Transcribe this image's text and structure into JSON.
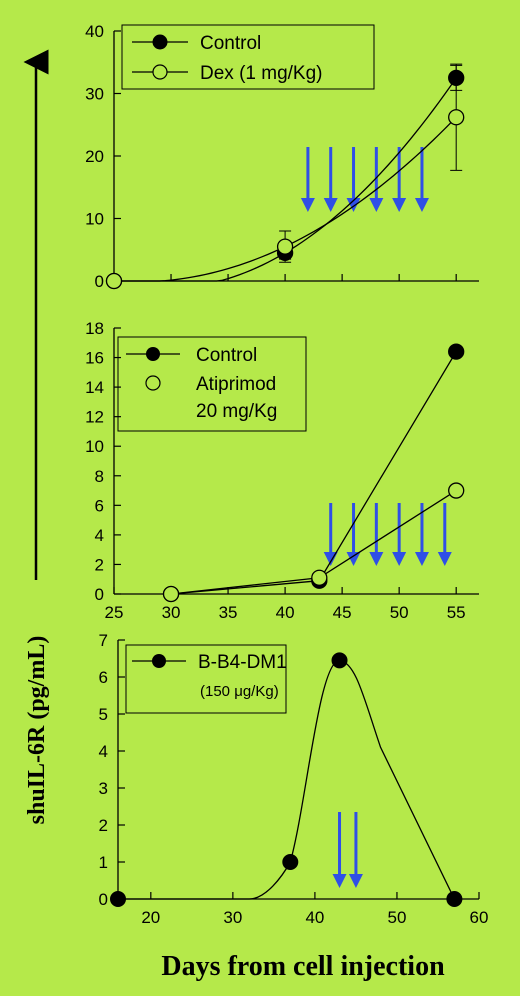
{
  "figure": {
    "ylabel": "shuIL-6R (pg/mL)",
    "xlabel": "Days from cell injection",
    "background": "#b5e94a",
    "arrow_color": "#2f4fe6"
  },
  "chart_data": [
    {
      "type": "line",
      "xlim": [
        25,
        57
      ],
      "ylim": [
        0,
        40
      ],
      "yticks": [
        "0",
        "10",
        "20",
        "30",
        "40"
      ],
      "legend_position": "top-left",
      "series": [
        {
          "name": "Control",
          "marker": "filled-circle",
          "x": [
            25,
            40,
            55
          ],
          "y": [
            0,
            4.5,
            32.5
          ],
          "err": [
            0,
            1.0,
            2.0
          ]
        },
        {
          "name": "Dex (1 mg/Kg)",
          "marker": "open-circle",
          "x": [
            25,
            40,
            55
          ],
          "y": [
            0,
            5.5,
            26.2
          ],
          "err": [
            0,
            2.5,
            8.5
          ]
        }
      ],
      "treatment_days": [
        42,
        44,
        46,
        48,
        50,
        52
      ]
    },
    {
      "type": "line",
      "xlim": [
        25,
        57
      ],
      "ylim": [
        0,
        18
      ],
      "yticks": [
        "0",
        "2",
        "4",
        "6",
        "8",
        "10",
        "12",
        "14",
        "16",
        "18"
      ],
      "xticks": [
        "25",
        "30",
        "35",
        "40",
        "45",
        "50",
        "55"
      ],
      "legend_position": "top-left",
      "series": [
        {
          "name": "Control",
          "marker": "filled-circle",
          "x": [
            30,
            43,
            55
          ],
          "y": [
            0,
            0.9,
            16.4
          ]
        },
        {
          "name": "Atiprimod 20 mg/Kg",
          "name_line1": "Atiprimod",
          "name_line2": "20 mg/Kg",
          "marker": "open-circle",
          "x": [
            30,
            43,
            55
          ],
          "y": [
            0,
            1.1,
            7.0
          ]
        }
      ],
      "treatment_days": [
        44,
        46,
        48,
        50,
        52,
        54
      ]
    },
    {
      "type": "line",
      "xlim": [
        16,
        60
      ],
      "ylim": [
        0,
        7
      ],
      "yticks": [
        "0",
        "1",
        "2",
        "3",
        "4",
        "5",
        "6",
        "7"
      ],
      "xticks": [
        "20",
        "30",
        "40",
        "50",
        "60"
      ],
      "legend_position": "top-left",
      "series": [
        {
          "name": "B-B4-DM1",
          "name_dose": "(150 μg/Kg)",
          "marker": "filled-circle",
          "x": [
            16,
            37,
            43,
            57
          ],
          "y": [
            0,
            1.0,
            6.45,
            0
          ]
        }
      ],
      "treatment_days": [
        43,
        45
      ]
    }
  ]
}
